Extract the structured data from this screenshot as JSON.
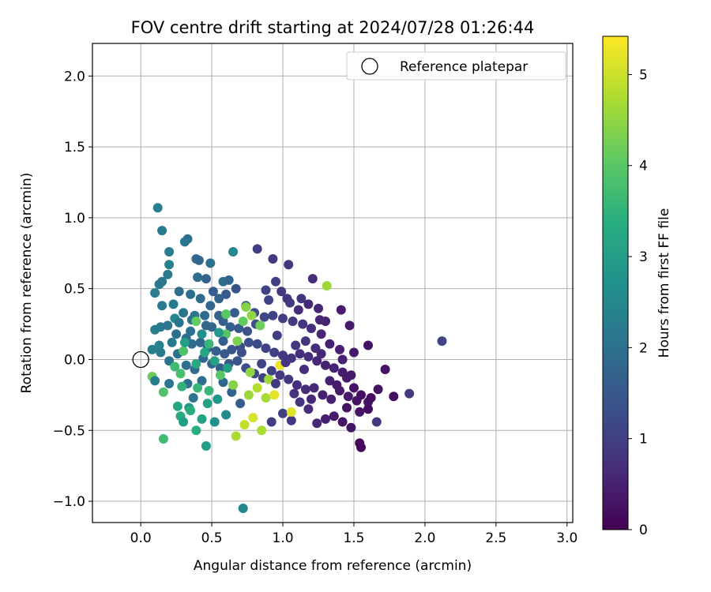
{
  "chart_data": {
    "type": "scatter",
    "title": "FOV centre drift starting at 2024/07/28 01:26:44",
    "xlabel": "Angular distance from reference (arcmin)",
    "ylabel": "Rotation from reference (arcmin)",
    "xlim": [
      -0.34,
      3.04
    ],
    "ylim": [
      -1.15,
      2.23
    ],
    "xticks": [
      0.0,
      0.5,
      1.0,
      1.5,
      2.0,
      2.5,
      3.0
    ],
    "xtick_labels": [
      "0.0",
      "0.5",
      "1.0",
      "1.5",
      "2.0",
      "2.5",
      "3.0"
    ],
    "yticks": [
      -1.0,
      -0.5,
      0.0,
      0.5,
      1.0,
      1.5,
      2.0
    ],
    "ytick_labels": [
      "−1.0",
      "−0.5",
      "0.0",
      "0.5",
      "1.0",
      "1.5",
      "2.0"
    ],
    "grid": true,
    "legend": {
      "position": "top-right",
      "entries": [
        {
          "label": "Reference platepar",
          "marker": "open-circle",
          "color": "#000000"
        }
      ]
    },
    "reference_point": {
      "x": 0.0,
      "y": 0.0
    },
    "colorbar": {
      "label": "Hours from first FF file",
      "colormap": "viridis",
      "range": [
        0,
        5.42
      ],
      "ticks": [
        0,
        1,
        2,
        3,
        4,
        5
      ],
      "tick_labels": [
        "0",
        "1",
        "2",
        "3",
        "4",
        "5"
      ]
    },
    "series": [
      {
        "color_by": "hours",
        "points": [
          [
            0.12,
            1.07,
            2.3
          ],
          [
            0.15,
            0.91,
            2.2
          ],
          [
            0.33,
            0.85,
            2.0
          ],
          [
            0.31,
            0.83,
            2.1
          ],
          [
            0.2,
            0.76,
            2.3
          ],
          [
            0.2,
            0.67,
            2.4
          ],
          [
            0.39,
            0.71,
            1.9
          ],
          [
            0.41,
            0.7,
            1.8
          ],
          [
            0.49,
            0.68,
            2.0
          ],
          [
            0.58,
            0.55,
            1.9
          ],
          [
            0.62,
            0.56,
            1.8
          ],
          [
            0.65,
            0.76,
            2.5
          ],
          [
            0.82,
            0.78,
            1.0
          ],
          [
            0.93,
            0.71,
            0.9
          ],
          [
            1.04,
            0.67,
            0.8
          ],
          [
            1.21,
            0.57,
            0.7
          ],
          [
            0.13,
            0.53,
            2.2
          ],
          [
            0.15,
            0.55,
            2.1
          ],
          [
            0.1,
            0.47,
            2.3
          ],
          [
            0.19,
            0.6,
            2.2
          ],
          [
            0.27,
            0.48,
            2.0
          ],
          [
            0.4,
            0.58,
            1.9
          ],
          [
            0.46,
            0.57,
            1.7
          ],
          [
            0.51,
            0.48,
            1.6
          ],
          [
            0.6,
            0.46,
            1.5
          ],
          [
            0.67,
            0.5,
            1.4
          ],
          [
            0.74,
            0.38,
            1.3
          ],
          [
            0.8,
            0.33,
            1.3
          ],
          [
            0.88,
            0.49,
            1.1
          ],
          [
            0.95,
            0.55,
            1.0
          ],
          [
            0.99,
            0.48,
            0.9
          ],
          [
            1.03,
            0.43,
            0.8
          ],
          [
            1.11,
            0.35,
            0.7
          ],
          [
            1.18,
            0.39,
            0.6
          ],
          [
            1.25,
            0.36,
            0.6
          ],
          [
            1.3,
            0.27,
            0.5
          ],
          [
            1.41,
            0.35,
            0.4
          ],
          [
            1.47,
            0.24,
            0.4
          ],
          [
            1.31,
            0.52,
            4.6
          ],
          [
            0.15,
            0.38,
            2.2
          ],
          [
            0.23,
            0.39,
            2.2
          ],
          [
            0.3,
            0.33,
            2.1
          ],
          [
            0.36,
            0.28,
            2.0
          ],
          [
            0.38,
            0.31,
            2.1
          ],
          [
            0.45,
            0.31,
            1.9
          ],
          [
            0.49,
            0.38,
            1.8
          ],
          [
            0.55,
            0.31,
            1.7
          ],
          [
            0.58,
            0.27,
            1.7
          ],
          [
            0.63,
            0.23,
            1.6
          ],
          [
            0.69,
            0.22,
            1.5
          ],
          [
            0.75,
            0.2,
            1.4
          ],
          [
            0.81,
            0.25,
            1.3
          ],
          [
            0.87,
            0.3,
            1.2
          ],
          [
            0.93,
            0.31,
            1.1
          ],
          [
            1.0,
            0.29,
            1.0
          ],
          [
            1.07,
            0.27,
            0.9
          ],
          [
            1.14,
            0.25,
            0.8
          ],
          [
            1.2,
            0.22,
            0.7
          ],
          [
            1.27,
            0.18,
            0.6
          ],
          [
            1.33,
            0.11,
            0.5
          ],
          [
            1.4,
            0.07,
            0.5
          ],
          [
            1.5,
            0.05,
            0.4
          ],
          [
            1.6,
            0.1,
            0.3
          ],
          [
            2.12,
            0.13,
            1.1
          ],
          [
            0.1,
            0.21,
            2.3
          ],
          [
            0.14,
            0.23,
            2.2
          ],
          [
            0.19,
            0.24,
            2.1
          ],
          [
            0.25,
            0.18,
            2.0
          ],
          [
            0.32,
            0.15,
            1.9
          ],
          [
            0.36,
            0.11,
            1.9
          ],
          [
            0.42,
            0.12,
            1.8
          ],
          [
            0.47,
            0.08,
            1.7
          ],
          [
            0.53,
            0.06,
            1.6
          ],
          [
            0.59,
            0.04,
            1.5
          ],
          [
            0.64,
            0.07,
            1.4
          ],
          [
            0.7,
            0.09,
            1.3
          ],
          [
            0.76,
            0.12,
            1.3
          ],
          [
            0.82,
            0.11,
            1.2
          ],
          [
            0.88,
            0.08,
            1.1
          ],
          [
            0.94,
            0.05,
            1.0
          ],
          [
            1.0,
            0.03,
            0.9
          ],
          [
            1.06,
            0.01,
            0.8
          ],
          [
            1.12,
            0.04,
            0.7
          ],
          [
            1.18,
            0.02,
            0.7
          ],
          [
            1.24,
            -0.01,
            0.6
          ],
          [
            1.3,
            -0.04,
            0.5
          ],
          [
            1.36,
            -0.06,
            0.5
          ],
          [
            1.42,
            -0.09,
            0.4
          ],
          [
            1.48,
            -0.11,
            0.4
          ],
          [
            1.72,
            -0.07,
            0.3
          ],
          [
            0.08,
            0.07,
            2.3
          ],
          [
            0.14,
            0.05,
            2.2
          ],
          [
            0.2,
            -0.01,
            2.1
          ],
          [
            0.26,
            0.04,
            2.0
          ],
          [
            0.32,
            -0.04,
            2.0
          ],
          [
            0.38,
            -0.07,
            1.9
          ],
          [
            0.44,
            0.01,
            1.8
          ],
          [
            0.5,
            -0.03,
            1.7
          ],
          [
            0.56,
            -0.06,
            1.6
          ],
          [
            0.62,
            -0.03,
            1.5
          ],
          [
            0.68,
            -0.01,
            1.4
          ],
          [
            0.74,
            -0.06,
            1.3
          ],
          [
            0.8,
            -0.1,
            1.2
          ],
          [
            0.86,
            -0.13,
            1.1
          ],
          [
            0.92,
            -0.08,
            1.0
          ],
          [
            0.98,
            -0.11,
            0.9
          ],
          [
            1.04,
            -0.14,
            0.8
          ],
          [
            1.1,
            -0.18,
            0.7
          ],
          [
            1.16,
            -0.21,
            0.7
          ],
          [
            1.22,
            -0.2,
            0.6
          ],
          [
            1.28,
            -0.25,
            0.5
          ],
          [
            1.34,
            -0.28,
            0.5
          ],
          [
            1.4,
            -0.22,
            0.4
          ],
          [
            1.46,
            -0.26,
            0.4
          ],
          [
            1.52,
            -0.29,
            0.3
          ],
          [
            1.6,
            -0.3,
            0.3
          ],
          [
            1.67,
            -0.21,
            0.3
          ],
          [
            1.78,
            -0.26,
            0.2
          ],
          [
            1.89,
            -0.24,
            0.9
          ],
          [
            0.08,
            -0.12,
            4.2
          ],
          [
            0.1,
            -0.15,
            2.3
          ],
          [
            0.16,
            -0.23,
            3.9
          ],
          [
            0.2,
            -0.17,
            2.1
          ],
          [
            0.28,
            -0.1,
            3.8
          ],
          [
            0.33,
            -0.17,
            2.0
          ],
          [
            0.37,
            -0.27,
            2.1
          ],
          [
            0.43,
            -0.15,
            1.9
          ],
          [
            0.48,
            -0.22,
            3.6
          ],
          [
            0.54,
            -0.28,
            2.8
          ],
          [
            0.58,
            -0.16,
            1.8
          ],
          [
            0.64,
            -0.23,
            1.7
          ],
          [
            0.7,
            -0.31,
            1.6
          ],
          [
            0.76,
            -0.25,
            4.6
          ],
          [
            0.82,
            -0.2,
            4.8
          ],
          [
            0.88,
            -0.27,
            4.7
          ],
          [
            0.94,
            -0.25,
            5.2
          ],
          [
            1.0,
            -0.38,
            1.0
          ],
          [
            1.06,
            -0.43,
            0.9
          ],
          [
            1.12,
            -0.3,
            0.8
          ],
          [
            1.18,
            -0.35,
            0.7
          ],
          [
            1.24,
            -0.45,
            0.6
          ],
          [
            1.3,
            -0.42,
            0.5
          ],
          [
            1.36,
            -0.4,
            0.4
          ],
          [
            1.42,
            -0.44,
            0.3
          ],
          [
            1.48,
            -0.48,
            0.3
          ],
          [
            1.54,
            -0.37,
            0.3
          ],
          [
            1.6,
            -0.35,
            0.2
          ],
          [
            1.66,
            -0.44,
            0.9
          ],
          [
            0.28,
            -0.4,
            3.3
          ],
          [
            0.3,
            -0.44,
            3.0
          ],
          [
            0.34,
            -0.34,
            2.9
          ],
          [
            0.39,
            -0.5,
            3.4
          ],
          [
            0.43,
            -0.42,
            3.1
          ],
          [
            0.46,
            -0.61,
            3.0
          ],
          [
            0.52,
            -0.44,
            2.7
          ],
          [
            0.6,
            -0.39,
            2.6
          ],
          [
            0.16,
            -0.56,
            3.7
          ],
          [
            0.67,
            -0.54,
            4.7
          ],
          [
            0.73,
            -0.46,
            4.9
          ],
          [
            0.79,
            -0.41,
            5.1
          ],
          [
            0.85,
            -0.5,
            4.7
          ],
          [
            0.92,
            -0.44,
            1.0
          ],
          [
            1.06,
            -0.37,
            5.2
          ],
          [
            1.54,
            -0.59,
            0.1
          ],
          [
            1.55,
            -0.62,
            0.1
          ],
          [
            0.72,
            -1.05,
            2.5
          ],
          [
            0.98,
            -0.04,
            5.3
          ],
          [
            0.74,
            0.37,
            4.4
          ],
          [
            0.78,
            0.31,
            4.5
          ],
          [
            0.68,
            0.13,
            4.3
          ],
          [
            0.39,
            0.27,
            4.1
          ],
          [
            0.3,
            0.06,
            3.9
          ],
          [
            0.45,
            0.05,
            3.2
          ],
          [
            0.6,
            0.18,
            4.0
          ],
          [
            0.72,
            0.27,
            4.1
          ],
          [
            0.84,
            0.24,
            4.2
          ],
          [
            0.65,
            -0.18,
            4.4
          ],
          [
            0.9,
            -0.14,
            4.6
          ],
          [
            0.77,
            -0.09,
            4.5
          ],
          [
            0.56,
            -0.11,
            4.0
          ],
          [
            0.4,
            -0.2,
            3.6
          ],
          [
            0.26,
            -0.33,
            3.2
          ],
          [
            0.13,
            0.1,
            2.4
          ],
          [
            0.24,
            0.29,
            2.5
          ],
          [
            0.35,
            0.46,
            2.0
          ],
          [
            0.5,
            0.23,
            1.8
          ],
          [
            0.66,
            0.33,
            1.6
          ],
          [
            0.71,
            0.05,
            1.3
          ],
          [
            0.96,
            0.17,
            1.0
          ],
          [
            1.09,
            0.1,
            0.9
          ],
          [
            1.16,
            0.13,
            0.8
          ],
          [
            1.23,
            0.08,
            0.7
          ],
          [
            1.33,
            -0.15,
            0.5
          ],
          [
            1.38,
            -0.18,
            0.4
          ],
          [
            1.45,
            -0.34,
            0.3
          ],
          [
            1.5,
            -0.2,
            0.3
          ],
          [
            1.55,
            -0.25,
            0.2
          ],
          [
            1.62,
            -0.27,
            0.2
          ],
          [
            1.45,
            -0.13,
            0.4
          ],
          [
            1.42,
            0.0,
            0.5
          ],
          [
            1.27,
            0.04,
            0.6
          ],
          [
            1.15,
            -0.07,
            0.7
          ],
          [
            1.02,
            -0.02,
            0.8
          ],
          [
            0.9,
            0.42,
            1.1
          ],
          [
            1.05,
            0.4,
            0.9
          ],
          [
            1.13,
            0.43,
            0.8
          ],
          [
            1.26,
            0.28,
            0.6
          ],
          [
            0.55,
            0.43,
            1.7
          ],
          [
            0.42,
            0.43,
            1.9
          ],
          [
            0.27,
            0.26,
            2.1
          ],
          [
            0.22,
            0.12,
            2.2
          ],
          [
            0.35,
            0.2,
            2.0
          ],
          [
            0.46,
            0.24,
            1.8
          ],
          [
            0.58,
            0.13,
            1.6
          ],
          [
            0.85,
            -0.03,
            1.1
          ],
          [
            0.95,
            -0.17,
            0.9
          ],
          [
            1.08,
            -0.24,
            0.8
          ],
          [
            1.2,
            -0.28,
            0.6
          ],
          [
            0.31,
            0.12,
            3.0
          ],
          [
            0.43,
            0.18,
            2.7
          ],
          [
            0.55,
            0.19,
            2.9
          ],
          [
            0.52,
            -0.01,
            3.1
          ],
          [
            0.39,
            -0.03,
            3.3
          ],
          [
            0.29,
            -0.19,
            3.5
          ],
          [
            0.24,
            -0.05,
            3.7
          ],
          [
            0.35,
            -0.36,
            3.4
          ],
          [
            0.47,
            -0.31,
            3.1
          ],
          [
            0.61,
            -0.06,
            3.0
          ],
          [
            0.48,
            0.11,
            3.6
          ],
          [
            0.6,
            0.32,
            4.0
          ]
        ]
      }
    ]
  }
}
